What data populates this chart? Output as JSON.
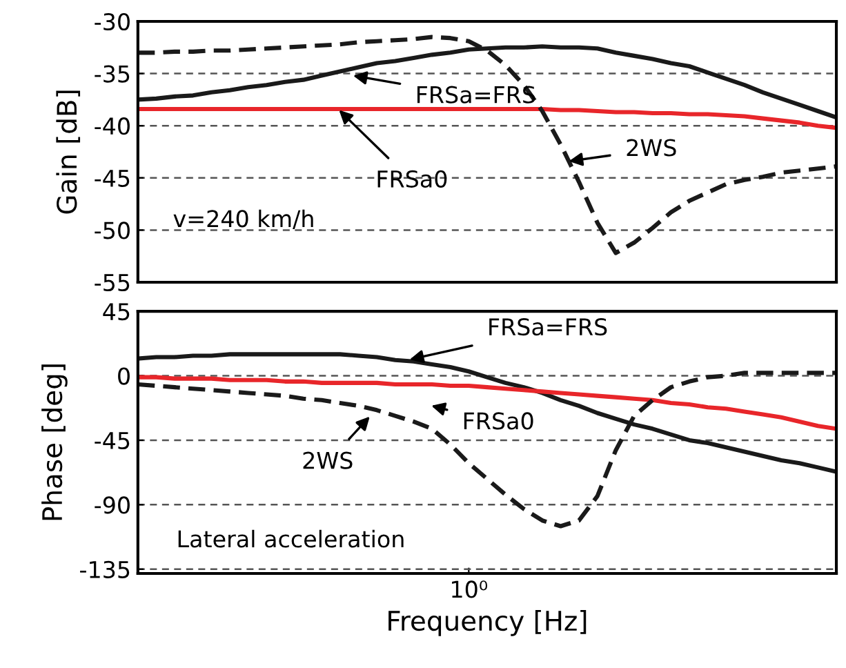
{
  "chart_data": [
    {
      "type": "line",
      "ylabel": "Gain [dB]",
      "grid": "y",
      "tick_labels": "y",
      "categories": [
        null,
        null,
        null,
        null,
        null,
        null,
        null,
        null,
        null,
        null,
        null,
        null,
        null,
        null,
        null,
        null,
        null,
        null,
        null,
        null,
        null,
        null,
        null,
        null,
        null,
        null,
        null,
        null,
        null,
        null,
        null,
        null,
        null,
        null,
        null,
        null,
        null,
        null,
        null
      ],
      "ylim": [
        -55,
        -30
      ],
      "yticks": [
        -55,
        -50,
        -45,
        -40,
        -35,
        -30
      ],
      "series": [
        {
          "color": "#1a1a1a",
          "line_style": "solid",
          "values": [
            -37.5,
            -37.4,
            -37.2,
            -37.1,
            -36.8,
            -36.6,
            -36.3,
            -36.1,
            -35.8,
            -35.6,
            -35.2,
            -34.8,
            -34.4,
            -34.0,
            -33.8,
            -33.5,
            -33.2,
            -33.0,
            -32.7,
            -32.6,
            -32.5,
            -32.5,
            -32.4,
            -32.5,
            -32.5,
            -32.6,
            -33.0,
            -33.3,
            -33.6,
            -34.0,
            -34.3,
            -34.9,
            -35.5,
            -36.1,
            -36.8,
            -37.4,
            -38.0,
            -38.6,
            -39.2
          ]
        },
        {
          "color": "#e8262a",
          "line_style": "solid",
          "values": [
            -38.4,
            -38.4,
            -38.4,
            -38.4,
            -38.4,
            -38.4,
            -38.4,
            -38.4,
            -38.4,
            -38.4,
            -38.4,
            -38.4,
            -38.4,
            -38.4,
            -38.4,
            -38.4,
            -38.4,
            -38.4,
            -38.4,
            -38.4,
            -38.4,
            -38.4,
            -38.4,
            -38.5,
            -38.5,
            -38.6,
            -38.7,
            -38.7,
            -38.8,
            -38.8,
            -38.9,
            -38.9,
            -39.0,
            -39.1,
            -39.3,
            -39.5,
            -39.7,
            -40.0,
            -40.2
          ]
        },
        {
          "color": "#1a1a1a",
          "line_style": "dashed",
          "values": [
            -33.0,
            -33.0,
            -32.9,
            -32.9,
            -32.8,
            -32.8,
            -32.7,
            -32.6,
            -32.5,
            -32.4,
            -32.3,
            -32.2,
            -32.0,
            -31.9,
            -31.8,
            -31.7,
            -31.5,
            -31.6,
            -31.9,
            -32.8,
            -34.2,
            -36.1,
            -38.6,
            -41.8,
            -45.4,
            -49.3,
            -52.2,
            -51.2,
            -49.8,
            -48.3,
            -47.2,
            -46.4,
            -45.6,
            -45.2,
            -44.9,
            -44.5,
            -44.3,
            -44.1,
            -43.9
          ]
        }
      ],
      "annotations": [
        "FRSa=FRS",
        "FRSa0",
        "2WS",
        "v=240 km/h"
      ]
    },
    {
      "type": "line",
      "ylabel": "Phase [deg]",
      "xlabel": "Frequency [Hz]",
      "grid": "y",
      "categories": [
        null,
        null,
        null,
        null,
        null,
        null,
        null,
        null,
        null,
        null,
        null,
        null,
        null,
        null,
        null,
        null,
        null,
        null,
        "10⁰",
        null,
        null,
        null,
        null,
        null,
        null,
        null,
        null,
        null,
        null,
        null,
        null,
        null,
        null,
        null,
        null,
        null,
        null,
        null,
        null
      ],
      "ylim": [
        -138,
        45
      ],
      "yticks": [
        -135,
        -90,
        -45,
        0,
        45
      ],
      "series": [
        {
          "color": "#1a1a1a",
          "line_style": "solid",
          "values": [
            12,
            13,
            13,
            14,
            14,
            15,
            15,
            15,
            15,
            15,
            15,
            15,
            14,
            13,
            11,
            10,
            8,
            6,
            3,
            -1,
            -5,
            -8,
            -12,
            -17,
            -21,
            -26,
            -30,
            -34,
            -37,
            -41,
            -45,
            -47,
            -50,
            -53,
            -56,
            -59,
            -61,
            -64,
            -67
          ]
        },
        {
          "color": "#e8262a",
          "line_style": "solid",
          "values": [
            -1,
            -1,
            -2,
            -2,
            -2,
            -3,
            -3,
            -3,
            -4,
            -4,
            -5,
            -5,
            -5,
            -5,
            -6,
            -6,
            -6,
            -7,
            -7,
            -8,
            -9,
            -10,
            -11,
            -12,
            -13,
            -14,
            -15,
            -16,
            -17,
            -19,
            -20,
            -22,
            -23,
            -25,
            -27,
            -29,
            -32,
            -35,
            -37
          ]
        },
        {
          "color": "#1a1a1a",
          "line_style": "dashed",
          "values": [
            -6,
            -7,
            -8,
            -9,
            -10,
            -11,
            -12,
            -13,
            -14,
            -16,
            -17,
            -19,
            -21,
            -24,
            -28,
            -32,
            -37,
            -48,
            -61,
            -72,
            -83,
            -93,
            -101,
            -105,
            -101,
            -84,
            -52,
            -28,
            -17,
            -8,
            -4,
            -1,
            0,
            2,
            2,
            2,
            2,
            2,
            2
          ]
        }
      ],
      "annotations": [
        "FRSa=FRS",
        "FRSa0",
        "2WS",
        "Lateral acceleration"
      ]
    }
  ]
}
